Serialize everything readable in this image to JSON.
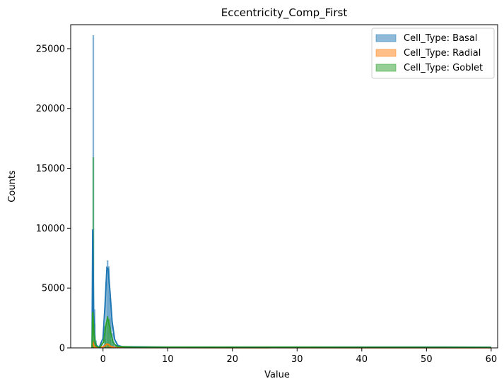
{
  "chart_data": {
    "type": "histogram",
    "title": "Eccentricity_Comp_First",
    "xlabel": "Value",
    "ylabel": "Counts",
    "xlim": [
      -5,
      61
    ],
    "ylim": [
      0,
      27000
    ],
    "xticks": [
      0,
      10,
      20,
      30,
      40,
      50,
      60
    ],
    "yticks": [
      0,
      5000,
      10000,
      15000,
      20000,
      25000
    ],
    "grid": false,
    "legend_position": "top-right",
    "series": [
      {
        "name": "Cell_Type: Basal",
        "color": "#1f77b4",
        "bars": [
          [
            -1.6,
            26100
          ],
          [
            -1.4,
            3200
          ],
          [
            -1.2,
            600
          ],
          [
            0.0,
            250
          ],
          [
            0.2,
            1800
          ],
          [
            0.4,
            5500
          ],
          [
            0.6,
            7300
          ],
          [
            0.8,
            6800
          ],
          [
            1.0,
            4200
          ],
          [
            1.2,
            2500
          ],
          [
            1.4,
            1200
          ],
          [
            1.6,
            500
          ],
          [
            1.8,
            260
          ],
          [
            2.0,
            160
          ],
          [
            2.5,
            100
          ],
          [
            4.0,
            80
          ],
          [
            10,
            70
          ],
          [
            20,
            70
          ],
          [
            30,
            70
          ],
          [
            40,
            70
          ],
          [
            50,
            70
          ],
          [
            59.5,
            40
          ]
        ],
        "kde": [
          [
            -1.7,
            0
          ],
          [
            -1.6,
            9900
          ],
          [
            -1.45,
            3000
          ],
          [
            -1.2,
            300
          ],
          [
            -0.6,
            40
          ],
          [
            0.0,
            800
          ],
          [
            0.3,
            3500
          ],
          [
            0.6,
            6700
          ],
          [
            0.8,
            6600
          ],
          [
            1.1,
            4500
          ],
          [
            1.4,
            2200
          ],
          [
            1.8,
            700
          ],
          [
            2.3,
            200
          ],
          [
            3.0,
            100
          ],
          [
            10,
            70
          ],
          [
            30,
            70
          ],
          [
            50,
            70
          ],
          [
            60,
            50
          ]
        ]
      },
      {
        "name": "Cell_Type: Radial",
        "color": "#ff7f0e",
        "bars": [
          [
            -1.6,
            600
          ],
          [
            -1.4,
            100
          ],
          [
            0.4,
            180
          ],
          [
            0.6,
            330
          ],
          [
            0.8,
            300
          ],
          [
            1.0,
            150
          ],
          [
            1.2,
            70
          ],
          [
            2.0,
            30
          ],
          [
            10,
            20
          ],
          [
            30,
            20
          ],
          [
            50,
            20
          ]
        ],
        "kde": [
          [
            -1.7,
            0
          ],
          [
            -1.6,
            500
          ],
          [
            -1.3,
            60
          ],
          [
            0.0,
            60
          ],
          [
            0.6,
            320
          ],
          [
            0.8,
            300
          ],
          [
            1.2,
            120
          ],
          [
            1.8,
            30
          ],
          [
            10,
            20
          ],
          [
            60,
            15
          ]
        ]
      },
      {
        "name": "Cell_Type: Goblet",
        "color": "#2ca02c",
        "bars": [
          [
            -1.6,
            15900
          ],
          [
            -1.4,
            2000
          ],
          [
            -1.2,
            400
          ],
          [
            0.2,
            700
          ],
          [
            0.4,
            2100
          ],
          [
            0.6,
            2600
          ],
          [
            0.8,
            2400
          ],
          [
            1.0,
            1400
          ],
          [
            1.2,
            700
          ],
          [
            1.4,
            300
          ],
          [
            1.8,
            120
          ],
          [
            2.5,
            80
          ],
          [
            10,
            60
          ],
          [
            20,
            60
          ],
          [
            30,
            60
          ],
          [
            40,
            60
          ],
          [
            50,
            60
          ],
          [
            59.5,
            30
          ]
        ],
        "kde": [
          [
            -1.7,
            0
          ],
          [
            -1.6,
            3000
          ],
          [
            -1.4,
            1100
          ],
          [
            -1.1,
            150
          ],
          [
            -0.5,
            40
          ],
          [
            0.1,
            500
          ],
          [
            0.4,
            1800
          ],
          [
            0.7,
            2500
          ],
          [
            0.9,
            2200
          ],
          [
            1.2,
            1200
          ],
          [
            1.6,
            400
          ],
          [
            2.2,
            120
          ],
          [
            5,
            60
          ],
          [
            30,
            60
          ],
          [
            60,
            40
          ]
        ]
      }
    ]
  }
}
